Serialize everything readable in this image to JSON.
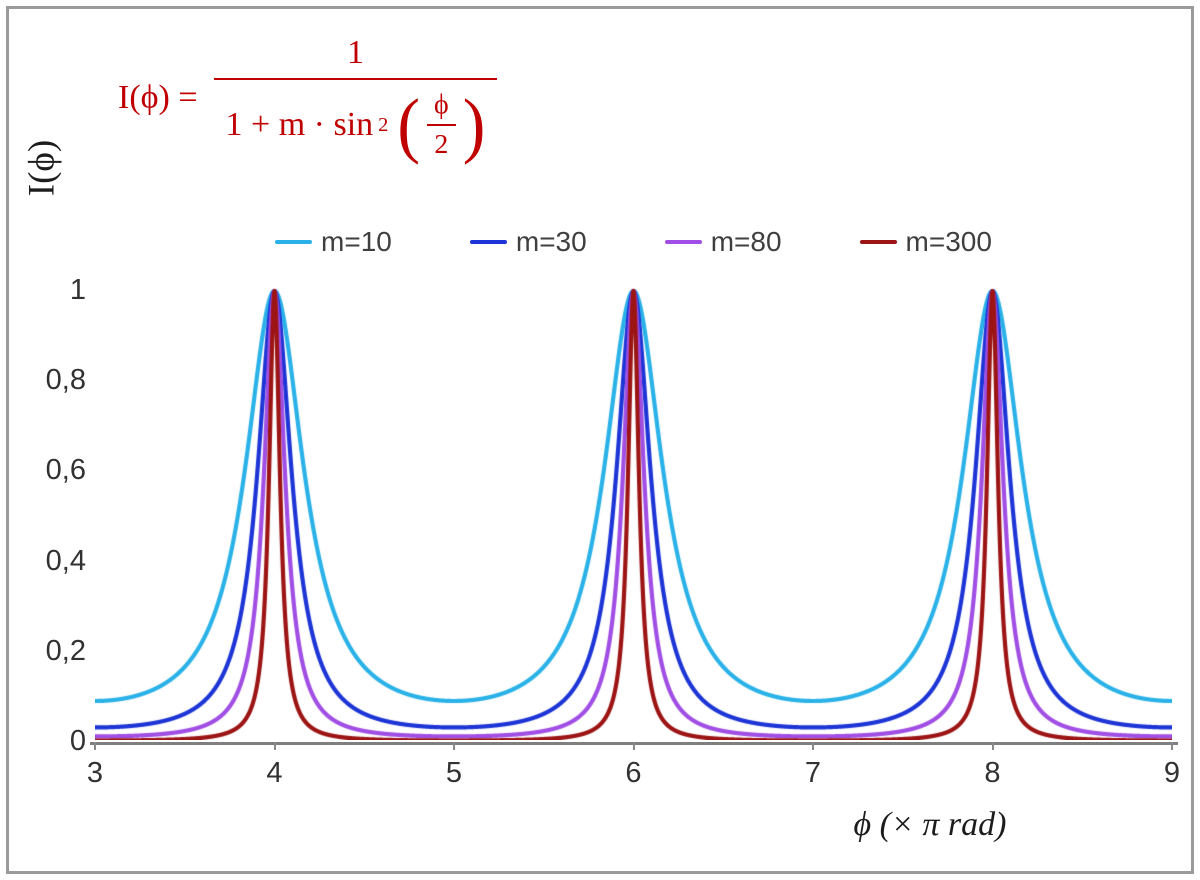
{
  "chart_data": {
    "type": "line",
    "title": "",
    "formula_text": "I(ϕ) = 1 / (1 + m·sin²(ϕ/2))",
    "xlabel": "ϕ  (× π rad)",
    "ylabel": "I(ϕ)",
    "x_unit": "π rad",
    "xlim": [
      3,
      9
    ],
    "ylim": [
      0,
      1
    ],
    "grid": false,
    "legend_position": "top",
    "x_ticks": [
      3,
      4,
      5,
      6,
      7,
      8,
      9
    ],
    "y_ticks": [
      {
        "value": 0,
        "label": "0"
      },
      {
        "value": 0.2,
        "label": "0,2"
      },
      {
        "value": 0.4,
        "label": "0,4"
      },
      {
        "value": 0.6,
        "label": "0,6"
      },
      {
        "value": 0.8,
        "label": "0,8"
      },
      {
        "value": 1,
        "label": "1"
      }
    ],
    "peaks_x": [
      4,
      6,
      8
    ],
    "peak_value": 1,
    "series": [
      {
        "name": "m=10",
        "m": 10,
        "color": "#2ab2e8"
      },
      {
        "name": "m=30",
        "m": 30,
        "color": "#1d35d6"
      },
      {
        "name": "m=80",
        "m": 80,
        "color": "#a04ee4"
      },
      {
        "name": "m=300",
        "m": 300,
        "color": "#9c1414"
      }
    ]
  },
  "formula": {
    "lhs": "I(ϕ) =",
    "numerator": "1",
    "den_prefix": "1 + m · sin",
    "den_sup": "2",
    "lparen": "(",
    "inner_numerator": "ϕ",
    "inner_denominator": "2",
    "rparen": ")",
    "color": "#c00000"
  }
}
